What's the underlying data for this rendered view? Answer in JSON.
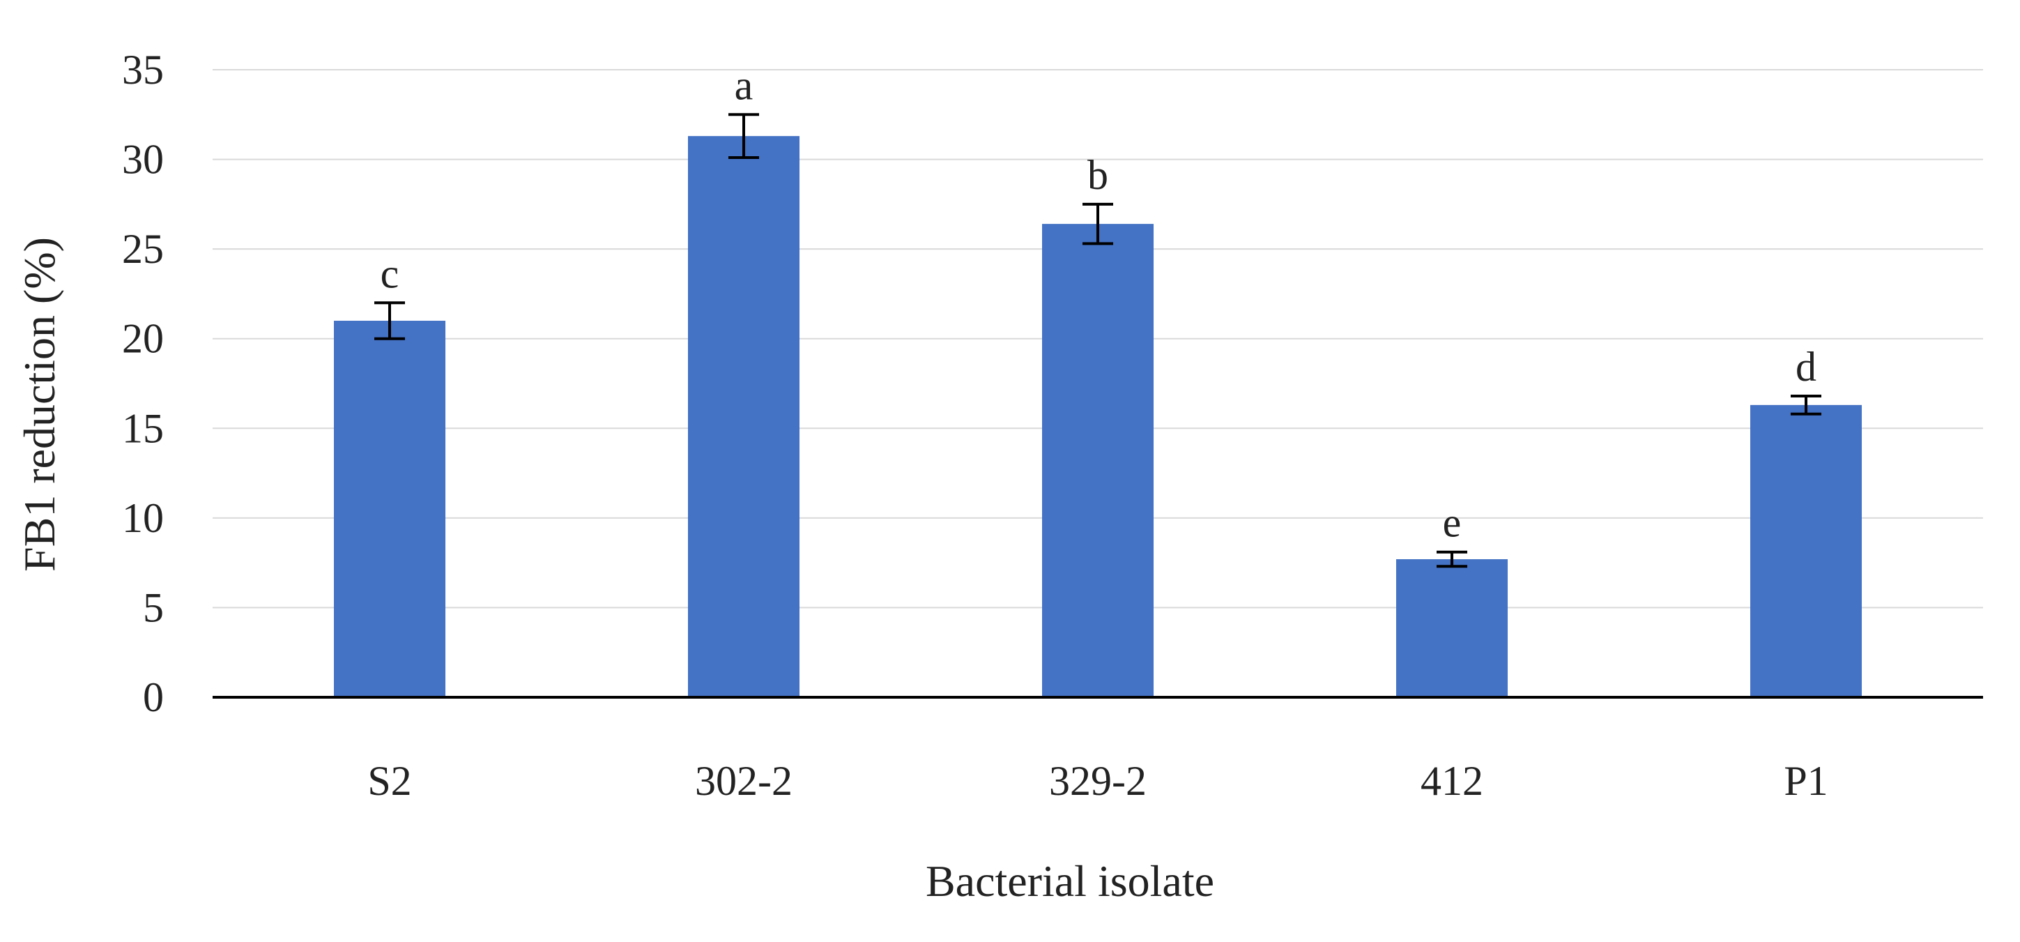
{
  "chart_data": {
    "type": "bar",
    "title": "",
    "xlabel": "Bacterial isolate",
    "ylabel": "FB1  reduction (%)",
    "categories": [
      "S2",
      "302-2",
      "329-2",
      "412",
      "P1"
    ],
    "values": [
      21.0,
      31.3,
      26.4,
      7.7,
      16.3
    ],
    "errors": [
      1.0,
      1.2,
      1.1,
      0.4,
      0.5
    ],
    "significance": [
      "c",
      "a",
      "b",
      "e",
      "d"
    ],
    "ylim": [
      0,
      35
    ],
    "yticks": [
      0,
      5,
      10,
      15,
      20,
      25,
      30,
      35
    ],
    "grid": true,
    "legend": false,
    "colors": {
      "bar": "#4472C4",
      "grid": "#D9D9D9",
      "axis": "#000000",
      "text": "#222222"
    }
  }
}
